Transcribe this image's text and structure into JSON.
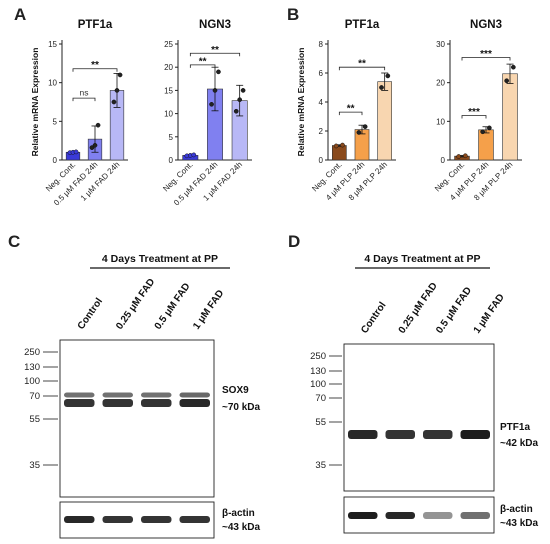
{
  "panels": {
    "A": "A",
    "B": "B",
    "C": "C",
    "D": "D"
  },
  "chart_data": [
    {
      "type": "bar",
      "panel": "A",
      "title": "PTF1a",
      "ylabel": "Relative mRNA Expression",
      "categories": [
        "Neg. Cont.",
        "0.5 μM FAD 24h",
        "1 μM FAD 24h"
      ],
      "values": [
        1,
        2.7,
        9
      ],
      "errors": [
        0.1,
        1.7,
        2.2
      ],
      "points": [
        [
          0.95,
          1.0,
          1.05
        ],
        [
          1.6,
          1.9,
          4.5
        ],
        [
          7.5,
          9.0,
          11.0
        ]
      ],
      "colors": [
        "#3a3ad8",
        "#8080f0",
        "#b8b8f6"
      ],
      "ylim": [
        0,
        15
      ],
      "yticks": [
        0,
        5,
        10,
        15
      ],
      "significance": [
        {
          "from": 0,
          "to": 1,
          "label": "ns",
          "level": 8.0
        },
        {
          "from": 0,
          "to": 2,
          "label": "**",
          "level": 11.8
        }
      ]
    },
    {
      "type": "bar",
      "panel": "A",
      "title": "NGN3",
      "ylabel": "",
      "categories": [
        "Neg. Cont.",
        "0.5 μM FAD 24h",
        "1 μM FAD 24h"
      ],
      "values": [
        1,
        15.3,
        12.8
      ],
      "errors": [
        0.1,
        4.7,
        3.3
      ],
      "points": [
        [
          0.9,
          1.0,
          1.1
        ],
        [
          12.0,
          15.0,
          19.0
        ],
        [
          10.5,
          13.0,
          15.0
        ]
      ],
      "colors": [
        "#3a3ad8",
        "#8080f0",
        "#b8b8f6"
      ],
      "ylim": [
        0,
        25
      ],
      "yticks": [
        0,
        5,
        10,
        15,
        20,
        25
      ],
      "significance": [
        {
          "from": 0,
          "to": 1,
          "label": "**",
          "level": 20.5
        },
        {
          "from": 0,
          "to": 2,
          "label": "**",
          "level": 23.0
        }
      ]
    },
    {
      "type": "bar",
      "panel": "B",
      "title": "PTF1a",
      "ylabel": "Relative mRNA Expression",
      "categories": [
        "Neg. Cont.",
        "4 μM PLP 24h",
        "8 μM PLP 24h"
      ],
      "values": [
        1,
        2.1,
        5.4
      ],
      "errors": [
        0.05,
        0.3,
        0.6
      ],
      "points": [
        [
          0.97,
          1.03
        ],
        [
          1.9,
          2.3
        ],
        [
          5.0,
          5.8
        ]
      ],
      "colors": [
        "#8a4a1c",
        "#f5a04a",
        "#f8d6b0"
      ],
      "ylim": [
        0,
        8
      ],
      "yticks": [
        0,
        2,
        4,
        6,
        8
      ],
      "significance": [
        {
          "from": 0,
          "to": 1,
          "label": "**",
          "level": 3.3
        },
        {
          "from": 0,
          "to": 2,
          "label": "**",
          "level": 6.4
        }
      ]
    },
    {
      "type": "bar",
      "panel": "B",
      "title": "NGN3",
      "ylabel": "",
      "categories": [
        "Neg. Cont.",
        "4 μM PLP 24h",
        "8 μM PLP 24h"
      ],
      "values": [
        1,
        7.8,
        22.3
      ],
      "errors": [
        0.2,
        0.8,
        2.5
      ],
      "points": [
        [
          0.9,
          1.1
        ],
        [
          7.3,
          8.3
        ],
        [
          20.5,
          24.0
        ]
      ],
      "colors": [
        "#8a4a1c",
        "#f5a04a",
        "#f8d6b0"
      ],
      "ylim": [
        0,
        30
      ],
      "yticks": [
        0,
        10,
        20,
        30
      ],
      "significance": [
        {
          "from": 0,
          "to": 1,
          "label": "***",
          "level": 11.5
        },
        {
          "from": 0,
          "to": 2,
          "label": "***",
          "level": 26.5
        }
      ]
    }
  ],
  "blots": [
    {
      "panel": "C",
      "header": "4 Days Treatment at PP",
      "lanes": [
        "Control",
        "0.25 μM FAD",
        "0.5 μM FAD",
        "1 μM FAD"
      ],
      "markers": [
        "250",
        "130",
        "100",
        "70",
        "55",
        "35"
      ],
      "target_label": "SOX9",
      "target_size": "~70 kDa",
      "loading_label": "β-actin",
      "loading_size": "~43 kDa",
      "target_intensity": [
        0.85,
        0.85,
        0.85,
        0.9
      ],
      "loading_intensity": [
        0.9,
        0.85,
        0.85,
        0.85
      ]
    },
    {
      "panel": "D",
      "header": "4 Days Treatment at PP",
      "lanes": [
        "Control",
        "0.25 μM FAD",
        "0.5 μM FAD",
        "1 μM FAD"
      ],
      "markers": [
        "250",
        "130",
        "100",
        "70",
        "55",
        "35"
      ],
      "target_label": "PTF1a",
      "target_size": "~42 kDa",
      "loading_label": "β-actin",
      "loading_size": "~43 kDa",
      "target_intensity": [
        0.9,
        0.85,
        0.85,
        0.95
      ],
      "loading_intensity": [
        0.95,
        0.9,
        0.45,
        0.6
      ]
    }
  ]
}
